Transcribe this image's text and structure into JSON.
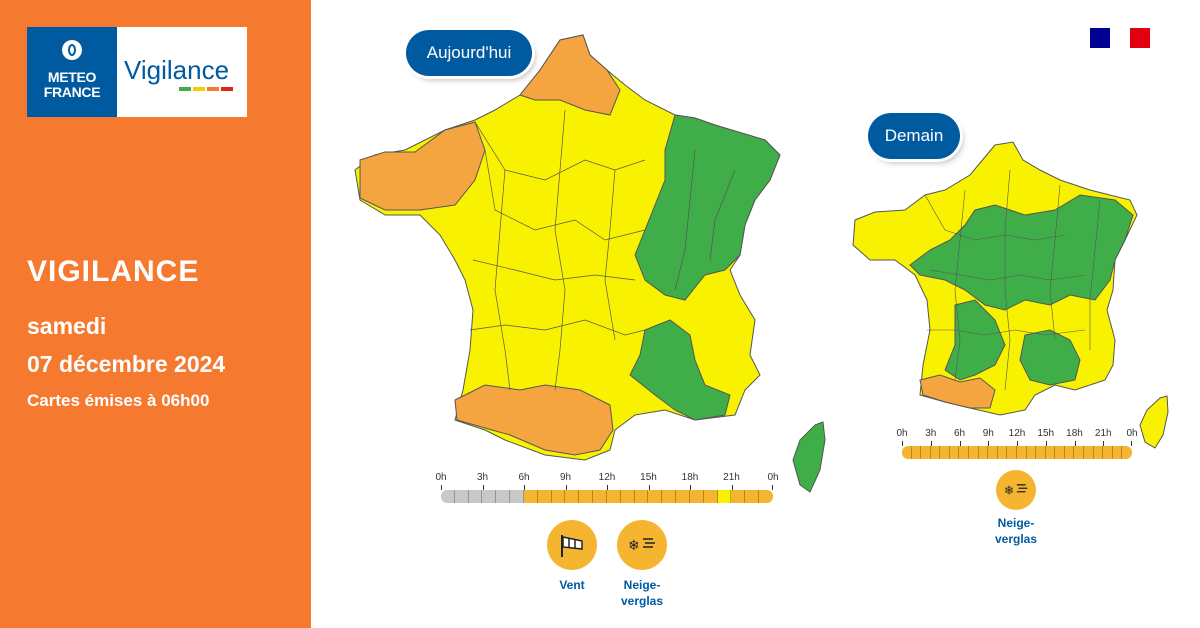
{
  "logo": {
    "brand_line1": "METEO",
    "brand_line2": "FRANCE",
    "product": "Vigilance",
    "bar_colors": [
      "#3fae49",
      "#f5d000",
      "#f57a30",
      "#e2231a"
    ]
  },
  "left_panel": {
    "title": "VIGILANCE",
    "day": "samedi",
    "date": "07 décembre 2024",
    "issued": "Cartes émises à 06h00",
    "background_color": "#f57a30"
  },
  "colors": {
    "green": "#3fae49",
    "yellow": "#f8f200",
    "orange": "#f5a540",
    "brand_blue": "#005aa0",
    "icon_orange": "#f5b530"
  },
  "flag_colors": [
    "#000091",
    "#ffffff",
    "#e1000f"
  ],
  "today": {
    "label": "Aujourd'hui",
    "timeline": {
      "hours": [
        "0h",
        "3h",
        "6h",
        "9h",
        "12h",
        "15h",
        "18h",
        "21h",
        "0h"
      ],
      "segments": [
        "grey",
        "grey",
        "grey",
        "grey",
        "grey",
        "grey",
        "orange",
        "orange",
        "orange",
        "orange",
        "orange",
        "orange",
        "orange",
        "orange",
        "orange",
        "orange",
        "orange",
        "orange",
        "orange",
        "orange",
        "yellow",
        "orange",
        "orange",
        "orange"
      ]
    },
    "risks": [
      {
        "name": "Vent",
        "icon": "wind-sock-icon"
      },
      {
        "name": "Neige-\nverglas",
        "icon": "snow-ice-icon"
      }
    ]
  },
  "tomorrow": {
    "label": "Demain",
    "timeline": {
      "hours": [
        "0h",
        "3h",
        "6h",
        "9h",
        "12h",
        "15h",
        "18h",
        "21h",
        "0h"
      ],
      "segments": [
        "orange",
        "orange",
        "orange",
        "orange",
        "orange",
        "orange",
        "orange",
        "orange",
        "orange",
        "orange",
        "orange",
        "orange",
        "orange",
        "orange",
        "orange",
        "orange",
        "orange",
        "orange",
        "orange",
        "orange",
        "orange",
        "orange",
        "orange",
        "orange"
      ]
    },
    "risks": [
      {
        "name": "Neige-\nverglas",
        "icon": "snow-ice-icon"
      }
    ]
  }
}
